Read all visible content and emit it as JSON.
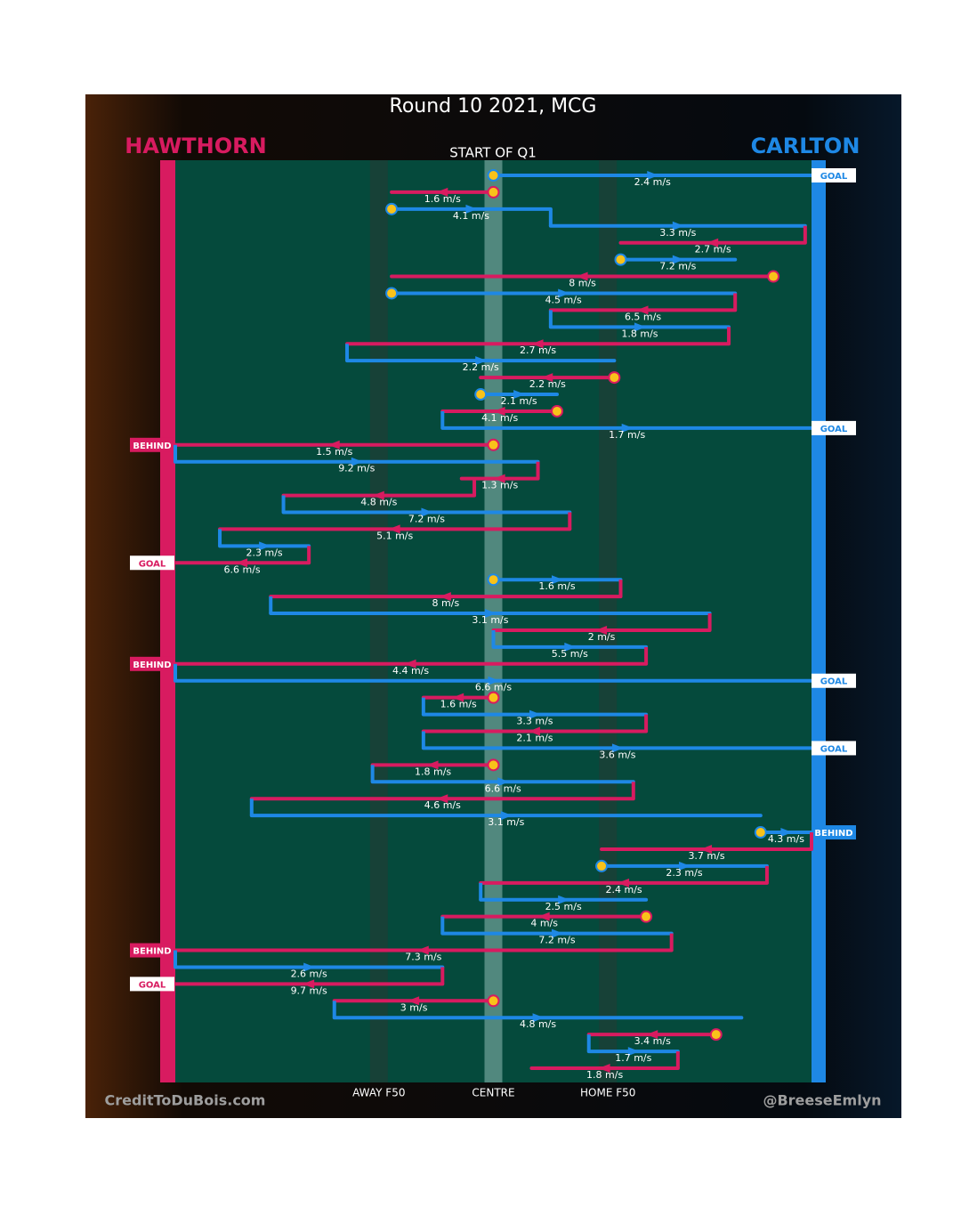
{
  "chart_data": {
    "type": "chains",
    "title": "Round 10 2021, MCG",
    "subtitle": "START OF Q1",
    "teams": [
      {
        "name": "HAWTHORN",
        "color": "#d81b60"
      },
      {
        "name": "CARLTON",
        "color": "#1e88e5"
      }
    ],
    "xlim": [
      0,
      100
    ],
    "zones": [
      {
        "label": "AWAY F50",
        "position": 32
      },
      {
        "label": "CENTRE",
        "position": 50
      },
      {
        "label": "HOME F50",
        "position": 68
      }
    ],
    "credits": [
      "CreditToDuBois.com",
      "@BreeseEmlyn"
    ],
    "chains": [
      {
        "team": 1,
        "from": 50,
        "to": 100,
        "speed": "2.4 m/s",
        "start": true,
        "result": "GOAL"
      },
      {
        "team": 0,
        "from": 50,
        "to": 34,
        "speed": "1.6 m/s",
        "start": true
      },
      {
        "team": 1,
        "from": 34,
        "to": 59,
        "speed": "4.1 m/s",
        "start": true
      },
      {
        "team": 1,
        "from": 59,
        "to": 99,
        "speed": "3.3 m/s"
      },
      {
        "team": 0,
        "from": 99,
        "to": 70,
        "speed": "2.7 m/s"
      },
      {
        "team": 1,
        "from": 70,
        "to": 88,
        "speed": "7.2 m/s",
        "start": true
      },
      {
        "team": 0,
        "from": 94,
        "to": 34,
        "speed": "8 m/s",
        "start": true
      },
      {
        "team": 1,
        "from": 34,
        "to": 88,
        "speed": "4.5 m/s",
        "start": true
      },
      {
        "team": 0,
        "from": 88,
        "to": 59,
        "speed": "6.5 m/s"
      },
      {
        "team": 1,
        "from": 59,
        "to": 87,
        "speed": "1.8 m/s"
      },
      {
        "team": 0,
        "from": 87,
        "to": 27,
        "speed": "2.7 m/s"
      },
      {
        "team": 1,
        "from": 27,
        "to": 69,
        "speed": "2.2 m/s"
      },
      {
        "team": 0,
        "from": 69,
        "to": 48,
        "speed": "2.2 m/s",
        "start": true
      },
      {
        "team": 1,
        "from": 48,
        "to": 60,
        "speed": "2.1 m/s",
        "start": true
      },
      {
        "team": 0,
        "from": 60,
        "to": 42,
        "speed": "4.1 m/s",
        "start": true
      },
      {
        "team": 1,
        "from": 42,
        "to": 100,
        "speed": "1.7 m/s",
        "result": "GOAL"
      },
      {
        "team": 0,
        "from": 50,
        "to": 0,
        "speed": "1.5 m/s",
        "start": true,
        "result": "BEHIND"
      },
      {
        "team": 1,
        "from": 0,
        "to": 57,
        "speed": "9.2 m/s"
      },
      {
        "team": 0,
        "from": 57,
        "to": 45,
        "speed": "1.3 m/s"
      },
      {
        "team": 0,
        "from": 47,
        "to": 17,
        "speed": "4.8 m/s"
      },
      {
        "team": 1,
        "from": 17,
        "to": 62,
        "speed": "7.2 m/s"
      },
      {
        "team": 0,
        "from": 62,
        "to": 7,
        "speed": "5.1 m/s"
      },
      {
        "team": 1,
        "from": 7,
        "to": 21,
        "speed": "2.3 m/s"
      },
      {
        "team": 0,
        "from": 21,
        "to": 0,
        "speed": "6.6 m/s",
        "result": "GOAL"
      },
      {
        "team": 1,
        "from": 50,
        "to": 70,
        "speed": "1.6 m/s",
        "start": true
      },
      {
        "team": 0,
        "from": 70,
        "to": 15,
        "speed": "8 m/s"
      },
      {
        "team": 1,
        "from": 15,
        "to": 84,
        "speed": "3.1 m/s"
      },
      {
        "team": 0,
        "from": 84,
        "to": 50,
        "speed": "2 m/s"
      },
      {
        "team": 1,
        "from": 50,
        "to": 74,
        "speed": "5.5 m/s"
      },
      {
        "team": 0,
        "from": 74,
        "to": 0,
        "speed": "4.4 m/s",
        "result": "BEHIND"
      },
      {
        "team": 1,
        "from": 0,
        "to": 100,
        "speed": "6.6 m/s",
        "result": "GOAL"
      },
      {
        "team": 0,
        "from": 50,
        "to": 39,
        "speed": "1.6 m/s",
        "start": true
      },
      {
        "team": 1,
        "from": 39,
        "to": 74,
        "speed": "3.3 m/s"
      },
      {
        "team": 0,
        "from": 74,
        "to": 39,
        "speed": "2.1 m/s"
      },
      {
        "team": 1,
        "from": 39,
        "to": 100,
        "speed": "3.6 m/s",
        "result": "GOAL"
      },
      {
        "team": 0,
        "from": 50,
        "to": 31,
        "speed": "1.8 m/s",
        "start": true
      },
      {
        "team": 1,
        "from": 31,
        "to": 72,
        "speed": "6.6 m/s"
      },
      {
        "team": 0,
        "from": 72,
        "to": 12,
        "speed": "4.6 m/s"
      },
      {
        "team": 1,
        "from": 12,
        "to": 92,
        "speed": "3.1 m/s"
      },
      {
        "team": 1,
        "from": 92,
        "to": 100,
        "speed": "4.3 m/s",
        "start": true,
        "result": "BEHIND"
      },
      {
        "team": 0,
        "from": 100,
        "to": 67,
        "speed": "3.7 m/s"
      },
      {
        "team": 1,
        "from": 67,
        "to": 93,
        "speed": "2.3 m/s",
        "start": true
      },
      {
        "team": 0,
        "from": 93,
        "to": 48,
        "speed": "2.4 m/s"
      },
      {
        "team": 1,
        "from": 48,
        "to": 74,
        "speed": "2.5 m/s"
      },
      {
        "team": 0,
        "from": 74,
        "to": 42,
        "speed": "4 m/s",
        "start": true
      },
      {
        "team": 1,
        "from": 42,
        "to": 78,
        "speed": "7.2 m/s"
      },
      {
        "team": 0,
        "from": 78,
        "to": 0,
        "speed": "7.3 m/s",
        "result": "BEHIND"
      },
      {
        "team": 1,
        "from": 0,
        "to": 42,
        "speed": "2.6 m/s"
      },
      {
        "team": 0,
        "from": 42,
        "to": 0,
        "speed": "9.7 m/s",
        "result": "GOAL"
      },
      {
        "team": 0,
        "from": 50,
        "to": 25,
        "speed": "3 m/s",
        "start": true
      },
      {
        "team": 1,
        "from": 25,
        "to": 89,
        "speed": "4.8 m/s"
      },
      {
        "team": 0,
        "from": 85,
        "to": 65,
        "speed": "3.4 m/s",
        "start": true
      },
      {
        "team": 1,
        "from": 65,
        "to": 79,
        "speed": "1.7 m/s"
      },
      {
        "team": 0,
        "from": 79,
        "to": 56,
        "speed": "1.8 m/s"
      }
    ]
  }
}
